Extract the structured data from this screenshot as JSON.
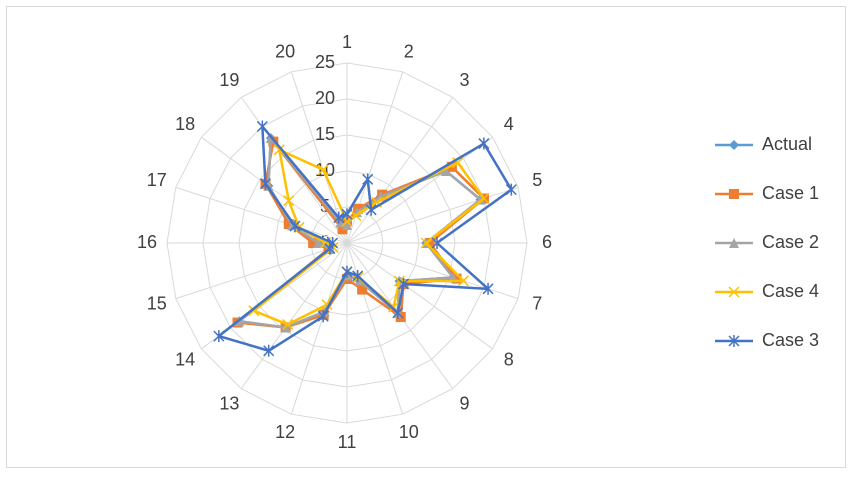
{
  "chart_data": {
    "type": "radar",
    "categories": [
      "1",
      "2",
      "3",
      "4",
      "5",
      "6",
      "7",
      "8",
      "9",
      "10",
      "11",
      "12",
      "13",
      "14",
      "15",
      "16",
      "17",
      "18",
      "19",
      "20"
    ],
    "rlim": [
      0,
      25
    ],
    "rticks": [
      0,
      5,
      10,
      15,
      20,
      25
    ],
    "grid": true,
    "legend": "right",
    "series": [
      {
        "name": "Actual",
        "color": "#5b9bd5",
        "marker": "diamond",
        "values": [
          2.5,
          4.5,
          8,
          17,
          19.5,
          11,
          15.5,
          9,
          12,
          5.5,
          4.5,
          10,
          14.5,
          18.5,
          2.5,
          4,
          8,
          13.5,
          18,
          3
        ]
      },
      {
        "name": "Case 1",
        "color": "#ed7d31",
        "marker": "square",
        "values": [
          3,
          5,
          8.3,
          18,
          20,
          11.5,
          16,
          9.7,
          12.7,
          6.8,
          5,
          10.5,
          14.5,
          18.8,
          2.7,
          4.7,
          8.5,
          14,
          17.4,
          2
        ]
      },
      {
        "name": "Case 2",
        "color": "#a5a5a5",
        "marker": "triangle",
        "values": [
          2.5,
          4.5,
          8,
          17,
          19.5,
          11,
          15.5,
          9,
          12,
          5.5,
          4.5,
          10,
          14.5,
          18.5,
          2.5,
          4,
          8,
          13.5,
          18,
          3
        ]
      },
      {
        "name": "Case 4",
        "color": "#ffc000",
        "marker": "x",
        "values": [
          3,
          4,
          7,
          19,
          20,
          11,
          17,
          9,
          11,
          5,
          4,
          9,
          14,
          16,
          2,
          3,
          7,
          10,
          16,
          10.7
        ]
      },
      {
        "name": "Case 3",
        "color": "#4472c4",
        "marker": "star",
        "values": [
          4,
          9.3,
          5.7,
          23.5,
          24,
          12.5,
          20.6,
          9.7,
          12,
          4.8,
          4,
          10.7,
          18.5,
          22,
          2.5,
          2,
          7.6,
          14,
          20,
          3.7
        ]
      }
    ]
  }
}
